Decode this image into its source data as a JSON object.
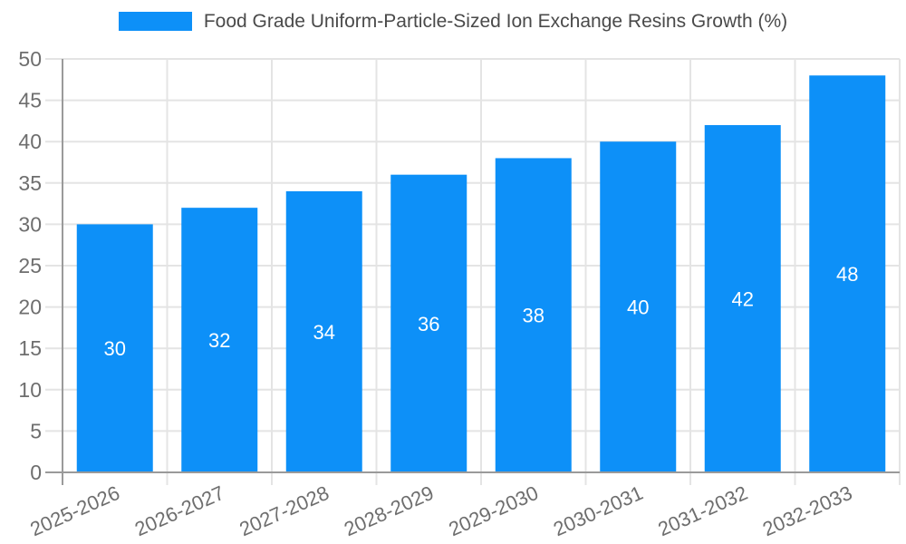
{
  "legend": {
    "label": "Food Grade Uniform-Particle-Sized Ion Exchange Resins Growth (%)"
  },
  "colors": {
    "bar": "#0D90F8",
    "grid_line": "#E4E4E4",
    "axis_line": "#9A9A9A",
    "tick_label": "#6E6E6E",
    "value_label": "#FFFFFF",
    "legend_text": "#4A4A4A",
    "background": "#FFFFFF"
  },
  "chart_data": {
    "type": "bar",
    "title": "Food Grade Uniform-Particle-Sized Ion Exchange Resins Growth (%)",
    "categories": [
      "2025-2026",
      "2026-2027",
      "2027-2028",
      "2028-2029",
      "2029-2030",
      "2030-2031",
      "2031-2032",
      "2032-2033"
    ],
    "values": [
      30,
      32,
      34,
      36,
      38,
      40,
      42,
      48
    ],
    "bar_value_labels": [
      "30",
      "32",
      "34",
      "36",
      "38",
      "40",
      "42",
      "48"
    ],
    "xlabel": "",
    "ylabel": "",
    "ylim": [
      0,
      50
    ],
    "ytick_step": 5,
    "ytick_labels": [
      "0",
      "5",
      "10",
      "15",
      "20",
      "25",
      "30",
      "35",
      "40",
      "45",
      "50"
    ],
    "grid": true,
    "x_grid": true,
    "legend_position": "top-center",
    "x_label_rotation_deg": -24,
    "value_label_position": "center-inside"
  }
}
